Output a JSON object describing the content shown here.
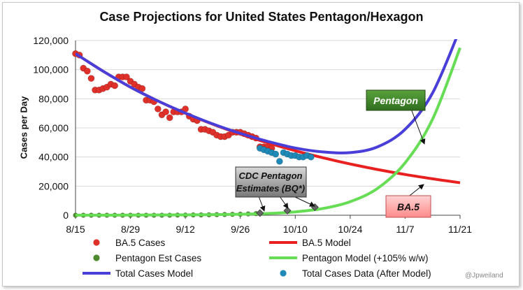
{
  "chart_data": {
    "type": "line",
    "title": "Case Projections for United States Pentagon/Hexagon",
    "ylabel": "Cases per Day",
    "xlabel": "",
    "x_ticks": [
      "8/15",
      "8/29",
      "9/12",
      "9/26",
      "10/10",
      "10/24",
      "11/7",
      "11/21"
    ],
    "y_ticks": [
      "0",
      "20,000",
      "40,000",
      "60,000",
      "80,000",
      "100,000",
      "120,000"
    ],
    "xlim": [
      "2022-08-15",
      "2022-11-21"
    ],
    "ylim": [
      0,
      120000
    ],
    "grid": "horizontal",
    "annotations": [
      {
        "text": "Pentagon",
        "color": "#2e6e1e"
      },
      {
        "text": "BA.5",
        "color": "#ff8a8a"
      },
      {
        "text_lines": [
          "CDC Pentagon",
          "Estimates (BQ*)"
        ],
        "color": "#777777"
      }
    ],
    "credit": "@Jpweiland",
    "series": [
      {
        "name": "BA.5 Cases",
        "style": "markers",
        "color": "#e0302a",
        "x": [
          "2022-08-15",
          "2022-08-16",
          "2022-08-17",
          "2022-08-18",
          "2022-08-19",
          "2022-08-20",
          "2022-08-21",
          "2022-08-22",
          "2022-08-23",
          "2022-08-24",
          "2022-08-25",
          "2022-08-26",
          "2022-08-27",
          "2022-08-28",
          "2022-08-29",
          "2022-08-30",
          "2022-08-31",
          "2022-09-01",
          "2022-09-02",
          "2022-09-03",
          "2022-09-04",
          "2022-09-05",
          "2022-09-06",
          "2022-09-07",
          "2022-09-08",
          "2022-09-09",
          "2022-09-10",
          "2022-09-11",
          "2022-09-12",
          "2022-09-13",
          "2022-09-14",
          "2022-09-15",
          "2022-09-16",
          "2022-09-17",
          "2022-09-18",
          "2022-09-19",
          "2022-09-20",
          "2022-09-21",
          "2022-09-22",
          "2022-09-23",
          "2022-09-24",
          "2022-09-25",
          "2022-09-26",
          "2022-09-27",
          "2022-09-28",
          "2022-09-29",
          "2022-09-30",
          "2022-10-01",
          "2022-10-02",
          "2022-10-03",
          "2022-10-04"
        ],
        "y": [
          111000,
          110000,
          101000,
          99000,
          94000,
          86000,
          86000,
          87000,
          88000,
          90000,
          89000,
          95000,
          95000,
          95000,
          92000,
          90000,
          88000,
          87000,
          79000,
          79000,
          78000,
          73000,
          69000,
          71000,
          67000,
          71000,
          71000,
          71000,
          73000,
          68000,
          66000,
          65000,
          59000,
          59000,
          58000,
          57000,
          55000,
          54000,
          54000,
          55000,
          57000,
          57000,
          57000,
          56000,
          55000,
          54000,
          53000,
          47000,
          47000,
          47000,
          46000
        ]
      },
      {
        "name": "BA.5 Model",
        "style": "line",
        "color": "#e8201f",
        "x": [
          "2022-08-15",
          "2022-08-22",
          "2022-08-29",
          "2022-09-05",
          "2022-09-12",
          "2022-09-19",
          "2022-09-26",
          "2022-10-03",
          "2022-10-10",
          "2022-10-17",
          "2022-10-24",
          "2022-10-31",
          "2022-11-07",
          "2022-11-14",
          "2022-11-21"
        ],
        "y": [
          111000,
          99000,
          88000,
          78500,
          70000,
          62500,
          55700,
          49700,
          44300,
          39500,
          35200,
          31400,
          28000,
          25000,
          22300
        ]
      },
      {
        "name": "Pentagon Est Cases",
        "style": "markers",
        "color": "#4e8a2e",
        "x": [
          "2022-08-15",
          "2022-08-17",
          "2022-08-19",
          "2022-08-21",
          "2022-08-23",
          "2022-08-25",
          "2022-08-27",
          "2022-08-29",
          "2022-08-31",
          "2022-09-02",
          "2022-09-04",
          "2022-09-06",
          "2022-09-08",
          "2022-09-10",
          "2022-09-12",
          "2022-09-14",
          "2022-09-16",
          "2022-09-18",
          "2022-09-20",
          "2022-09-22",
          "2022-09-24",
          "2022-09-26",
          "2022-09-28",
          "2022-09-30"
        ],
        "y": [
          0,
          0,
          0,
          0,
          0,
          0,
          0,
          0,
          0,
          0,
          0,
          0,
          0,
          100,
          100,
          200,
          200,
          300,
          400,
          500,
          600,
          700,
          900,
          1100
        ]
      },
      {
        "name": "Pentagon Model (+105% w/w)",
        "style": "line",
        "color": "#66dd55",
        "x": [
          "2022-08-15",
          "2022-08-29",
          "2022-09-12",
          "2022-09-26",
          "2022-10-03",
          "2022-10-10",
          "2022-10-17",
          "2022-10-24",
          "2022-10-31",
          "2022-11-07",
          "2022-11-14",
          "2022-11-21"
        ],
        "y": [
          30,
          100,
          260,
          660,
          1200,
          2300,
          4600,
          9300,
          18500,
          36000,
          66000,
          115000
        ]
      },
      {
        "name": "Total Cases Model",
        "style": "line",
        "color": "#4a3ed8",
        "x": [
          "2022-08-15",
          "2022-08-22",
          "2022-08-29",
          "2022-09-05",
          "2022-09-12",
          "2022-09-19",
          "2022-09-26",
          "2022-10-03",
          "2022-10-10",
          "2022-10-17",
          "2022-10-24",
          "2022-10-31",
          "2022-11-07",
          "2022-11-14",
          "2022-11-21"
        ],
        "y": [
          111000,
          99000,
          88000,
          78500,
          70200,
          62700,
          56200,
          50700,
          46200,
          43500,
          43000,
          47000,
          59000,
          84000,
          128000
        ]
      },
      {
        "name": "Total Cases Data (After Model)",
        "style": "markers",
        "color": "#1f8ab8",
        "x": [
          "2022-10-01",
          "2022-10-02",
          "2022-10-03",
          "2022-10-04",
          "2022-10-05",
          "2022-10-06",
          "2022-10-07",
          "2022-10-08",
          "2022-10-09",
          "2022-10-10",
          "2022-10-11",
          "2022-10-12",
          "2022-10-13",
          "2022-10-14"
        ],
        "y": [
          46000,
          45000,
          44000,
          43000,
          42000,
          37000,
          43000,
          42000,
          41000,
          41000,
          40000,
          40000,
          41000,
          40000
        ]
      },
      {
        "name": "CDC Pentagon Estimates",
        "style": "diamonds",
        "color": "#666666",
        "x": [
          "2022-10-01",
          "2022-10-08",
          "2022-10-15"
        ],
        "y": [
          1500,
          3200,
          5500
        ]
      }
    ]
  },
  "legend": {
    "items": [
      {
        "label": "BA.5 Cases",
        "marker": "dot",
        "color": "#e0302a"
      },
      {
        "label": "BA.5 Model",
        "marker": "line",
        "color": "#e8201f"
      },
      {
        "label": "Pentagon Est Cases",
        "marker": "dot",
        "color": "#4e8a2e"
      },
      {
        "label": "Pentagon Model (+105% w/w)",
        "marker": "line",
        "color": "#66dd55"
      },
      {
        "label": "Total Cases Model",
        "marker": "line",
        "color": "#4a3ed8"
      },
      {
        "label": "Total Cases Data (After Model)",
        "marker": "dot",
        "color": "#1f8ab8"
      }
    ]
  }
}
